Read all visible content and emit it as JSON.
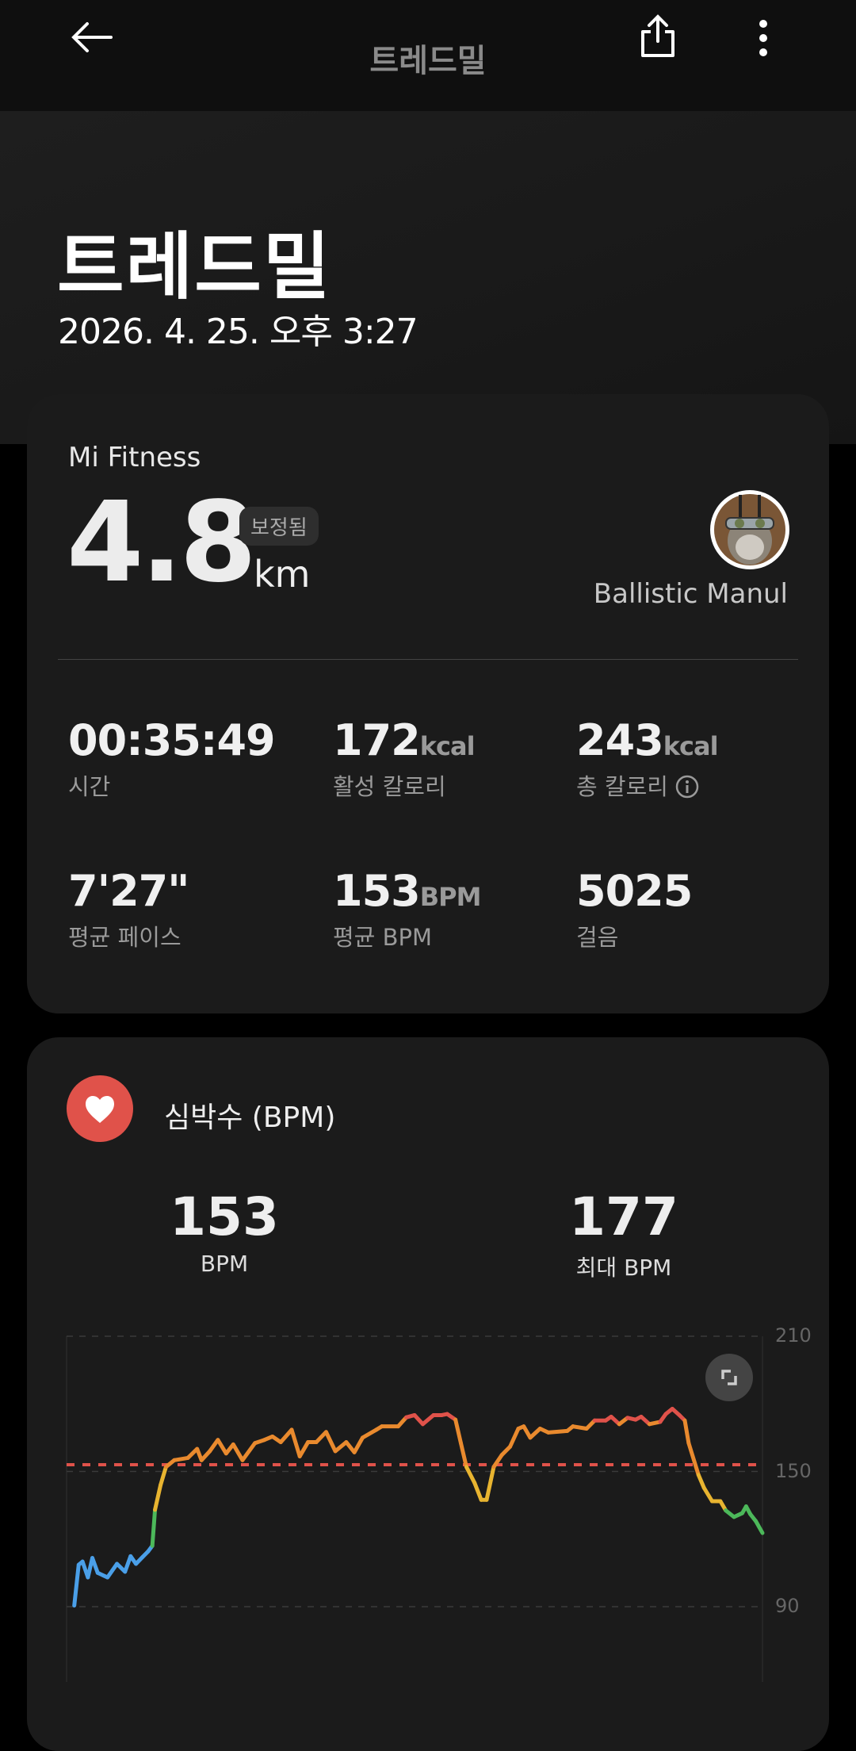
{
  "header": {
    "title": "트레드밀",
    "back_icon": "arrow-left-icon",
    "share_icon": "share-icon",
    "more_icon": "more-vertical-icon"
  },
  "hero": {
    "title": "트레드밀",
    "datetime": "2026. 4. 25. 오후 3:27"
  },
  "summary": {
    "source": "Mi Fitness",
    "distance": "4.8",
    "distance_unit": "km",
    "badge": "보정됨",
    "user_name": "Ballistic Manul",
    "stats": [
      {
        "value": "00:35:49",
        "unit": "",
        "label": "시간"
      },
      {
        "value": "172",
        "unit": "kcal",
        "label": "활성 칼로리"
      },
      {
        "value": "243",
        "unit": "kcal",
        "label": "총 칼로리",
        "info_icon": "info-icon"
      },
      {
        "value": "7'27\"",
        "unit": "",
        "label": "평균 페이스"
      },
      {
        "value": "153",
        "unit": "BPM",
        "label": "평균 BPM"
      },
      {
        "value": "5025",
        "unit": "",
        "label": "걸음"
      }
    ]
  },
  "heart_rate": {
    "title": "심박수 (BPM)",
    "avg_value": "153",
    "avg_label": "BPM",
    "max_value": "177",
    "max_label": "최대 BPM",
    "accent": "#e0524a"
  },
  "chart_data": {
    "type": "line",
    "y_ticks": [
      "210",
      "150",
      "90"
    ],
    "ylim": [
      90,
      210
    ],
    "xlim": [
      -0.4,
      35.8
    ],
    "grid": true,
    "average_line": 153,
    "average_line_color": "#e0524a",
    "zones": [
      {
        "min": 0,
        "max": 116,
        "color": "#4a9fe8"
      },
      {
        "min": 116,
        "max": 134,
        "color": "#4cb85a"
      },
      {
        "min": 134,
        "max": 153,
        "color": "#e8b430"
      },
      {
        "min": 153,
        "max": 172.5,
        "color": "#e98a2e"
      },
      {
        "min": 172.5,
        "max": 300,
        "color": "#e0524a"
      }
    ],
    "points": [
      [
        0,
        90.5
      ],
      [
        0.23,
        108.6
      ],
      [
        0.43,
        110
      ],
      [
        0.71,
        103
      ],
      [
        0.94,
        111.6
      ],
      [
        1.22,
        105
      ],
      [
        1.73,
        103
      ],
      [
        2.22,
        109
      ],
      [
        2.64,
        105.5
      ],
      [
        2.93,
        112.4
      ],
      [
        3.21,
        109
      ],
      [
        3.55,
        112
      ],
      [
        3.84,
        114.5
      ],
      [
        4.06,
        117
      ],
      [
        4.2,
        133
      ],
      [
        4.49,
        144
      ],
      [
        4.77,
        152
      ],
      [
        5.2,
        155
      ],
      [
        5.91,
        156
      ],
      [
        6.39,
        160
      ],
      [
        6.62,
        155
      ],
      [
        7.05,
        159
      ],
      [
        7.47,
        164
      ],
      [
        7.9,
        158
      ],
      [
        8.27,
        162
      ],
      [
        8.75,
        155
      ],
      [
        9.4,
        162.6
      ],
      [
        9.89,
        164
      ],
      [
        10.31,
        165.5
      ],
      [
        10.74,
        163
      ],
      [
        11.31,
        168.5
      ],
      [
        11.73,
        156.7
      ],
      [
        12.16,
        163
      ],
      [
        12.59,
        163
      ],
      [
        13.1,
        167.5
      ],
      [
        13.58,
        159
      ],
      [
        14.15,
        163
      ],
      [
        14.57,
        158.5
      ],
      [
        15.0,
        165
      ],
      [
        15.71,
        168.5
      ],
      [
        16.0,
        170
      ],
      [
        16.85,
        170
      ],
      [
        17.27,
        174
      ],
      [
        17.7,
        175
      ],
      [
        18.13,
        171
      ],
      [
        18.69,
        175
      ],
      [
        19.12,
        175
      ],
      [
        19.4,
        175.5
      ],
      [
        19.83,
        173
      ],
      [
        20.11,
        162.6
      ],
      [
        20.4,
        152
      ],
      [
        20.82,
        145
      ],
      [
        21.17,
        137.4
      ],
      [
        21.45,
        137.4
      ],
      [
        21.82,
        152
      ],
      [
        22.24,
        157.3
      ],
      [
        22.67,
        161
      ],
      [
        23.1,
        169
      ],
      [
        23.38,
        170
      ],
      [
        23.72,
        165
      ],
      [
        24.23,
        169
      ],
      [
        24.66,
        167.3
      ],
      [
        25.65,
        168
      ],
      [
        25.94,
        170
      ],
      [
        26.65,
        169
      ],
      [
        27.07,
        172.6
      ],
      [
        27.64,
        172.6
      ],
      [
        27.93,
        174.3
      ],
      [
        28.35,
        171
      ],
      [
        28.78,
        173.8
      ],
      [
        29.2,
        173
      ],
      [
        29.49,
        174.3
      ],
      [
        29.92,
        171
      ],
      [
        30.48,
        172
      ],
      [
        30.77,
        175.5
      ],
      [
        31.11,
        177.8
      ],
      [
        31.48,
        175
      ],
      [
        31.76,
        172.6
      ],
      [
        31.96,
        162.6
      ],
      [
        32.47,
        148.5
      ],
      [
        32.76,
        142.7
      ],
      [
        33.18,
        136.8
      ],
      [
        33.61,
        136.8
      ],
      [
        33.89,
        132.7
      ],
      [
        34.32,
        129.8
      ],
      [
        34.75,
        131.5
      ],
      [
        34.95,
        134.5
      ],
      [
        35.17,
        131
      ],
      [
        35.45,
        128
      ],
      [
        35.8,
        122.7
      ]
    ],
    "expand_icon": "expand-icon"
  }
}
